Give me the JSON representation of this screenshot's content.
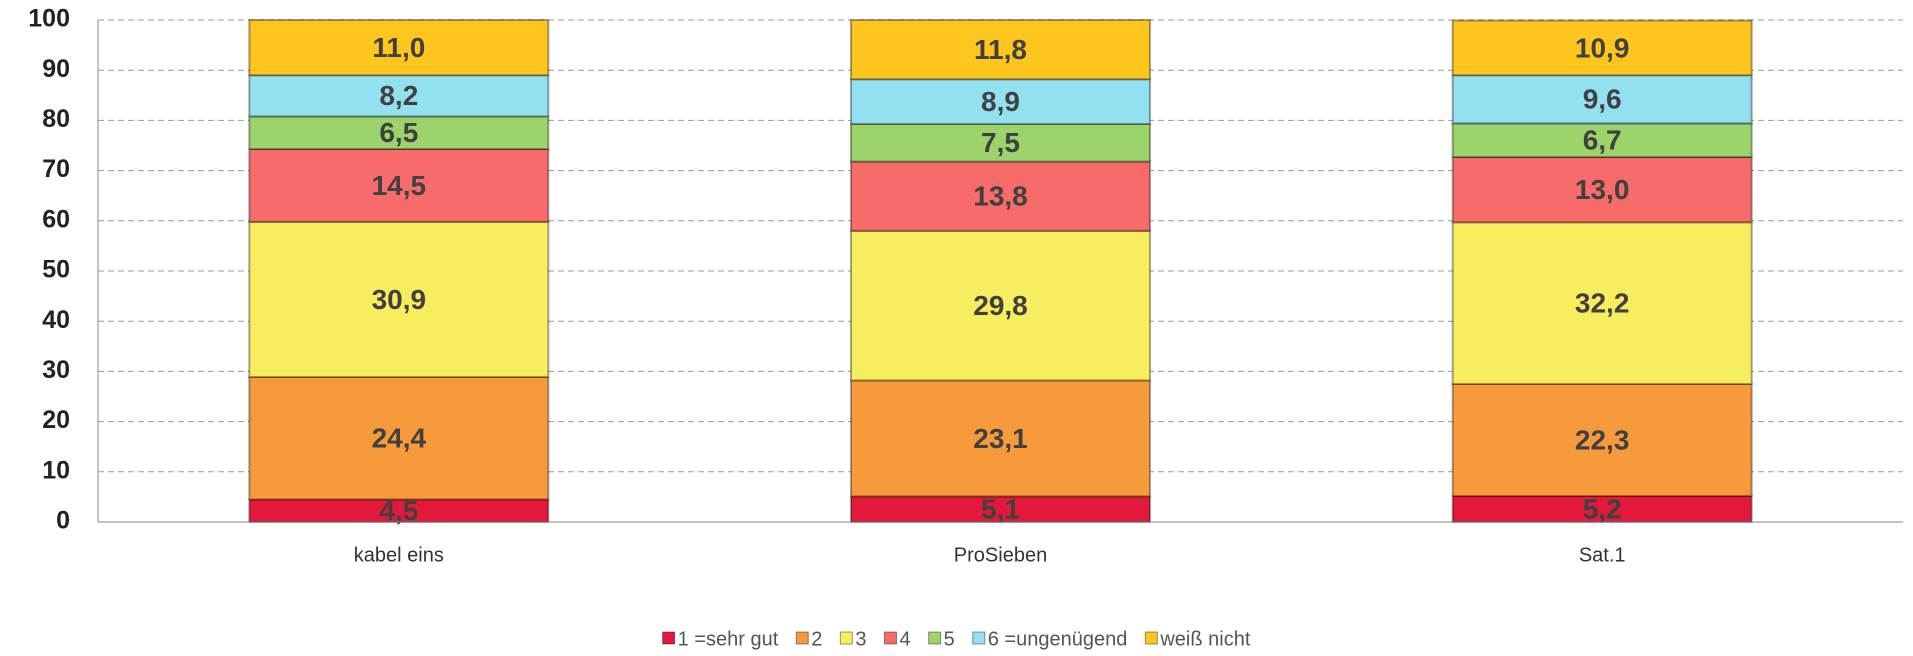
{
  "chart_data": {
    "type": "stacked_bar",
    "categories": [
      "kabel eins",
      "ProSieben",
      "Sat.1"
    ],
    "series": [
      {
        "name": "1 =sehr gut",
        "color": "#e3193b",
        "values": [
          4.5,
          5.1,
          5.2
        ],
        "value_labels": [
          "4,5",
          "5,1",
          "5,2"
        ]
      },
      {
        "name": "2",
        "color": "#f79a3b",
        "values": [
          24.4,
          23.1,
          22.3
        ],
        "value_labels": [
          "24,4",
          "23,1",
          "22,3"
        ]
      },
      {
        "name": "3",
        "color": "#f6ee5e",
        "values": [
          30.9,
          29.8,
          32.2
        ],
        "value_labels": [
          "30,9",
          "29,8",
          "32,2"
        ]
      },
      {
        "name": "4",
        "color": "#f76b6b",
        "values": [
          14.5,
          13.8,
          13.0
        ],
        "value_labels": [
          "14,5",
          "13,8",
          "13,0"
        ]
      },
      {
        "name": "5",
        "color": "#9dd36b",
        "values": [
          6.5,
          7.5,
          6.7
        ],
        "value_labels": [
          "6,5",
          "7,5",
          "6,7"
        ]
      },
      {
        "name": "6 =ungenügend",
        "color": "#93e0f1",
        "values": [
          8.2,
          8.9,
          9.6
        ],
        "value_labels": [
          "8,2",
          "8,9",
          "9,6"
        ]
      },
      {
        "name": "weiß nicht",
        "color": "#fdc51d",
        "values": [
          11.0,
          11.8,
          10.9
        ],
        "value_labels": [
          "11,0",
          "11,8",
          "10,9"
        ]
      }
    ],
    "ylim": [
      0,
      100
    ],
    "yticks": [
      0,
      10,
      20,
      30,
      40,
      50,
      60,
      70,
      80,
      90,
      100
    ],
    "grid": true,
    "legend": "bottom"
  }
}
